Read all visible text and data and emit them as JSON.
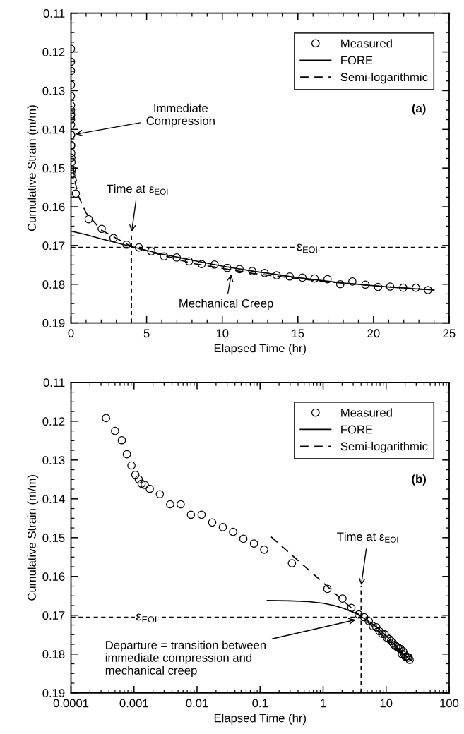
{
  "chart_data": [
    {
      "type": "scatter",
      "xlabel": "Elapsed Time (hr)",
      "ylabel": "Cumulative Strain (m/m)",
      "xlim": [
        0,
        25
      ],
      "xticks": [
        0,
        5,
        10,
        15,
        20,
        25
      ],
      "ylim": [
        0.19,
        0.11
      ],
      "yticks": [
        0.11,
        0.12,
        0.13,
        0.14,
        0.15,
        0.16,
        0.17,
        0.18,
        0.19
      ],
      "legend": "top right",
      "grid": false,
      "series": [
        {
          "name": "Measured",
          "marker": "circle",
          "color": "#000000",
          "x": [
            0.00036,
            0.0005,
            0.00064,
            0.00077,
            0.00091,
            0.00105,
            0.00119,
            0.00132,
            0.00148,
            0.00178,
            0.00257,
            0.00374,
            0.0055,
            0.008,
            0.0118,
            0.0174,
            0.0256,
            0.0373,
            0.0543,
            0.08,
            0.116,
            0.32,
            1.17,
            2.03,
            2.81,
            3.67,
            4.49,
            5.31,
            6.15,
            6.99,
            7.8,
            8.64,
            9.49,
            10.33,
            11.14,
            11.98,
            12.8,
            13.6,
            14.46,
            15.3,
            16.1,
            16.96,
            17.8,
            18.6,
            19.46,
            20.3,
            21.1,
            21.96,
            22.8,
            23.6
          ],
          "values": [
            0.1192,
            0.1225,
            0.1249,
            0.1285,
            0.1314,
            0.1338,
            0.135,
            0.1361,
            0.1364,
            0.1374,
            0.1388,
            0.1414,
            0.1414,
            0.1441,
            0.1441,
            0.1461,
            0.1473,
            0.1485,
            0.1503,
            0.1515,
            0.1531,
            0.1566,
            0.1632,
            0.1657,
            0.1681,
            0.1698,
            0.1705,
            0.1715,
            0.1728,
            0.1731,
            0.1741,
            0.1748,
            0.1749,
            0.1758,
            0.1761,
            0.1766,
            0.1771,
            0.1777,
            0.178,
            0.1783,
            0.1785,
            0.1787,
            0.18,
            0.1793,
            0.1801,
            0.1807,
            0.1806,
            0.1809,
            0.1809,
            0.1815
          ]
        },
        {
          "name": "FORE",
          "type": "line",
          "line_style": "solid",
          "color": "#000000",
          "x": [
            0,
            1,
            2,
            4,
            6,
            8,
            10,
            12,
            15,
            18,
            21,
            24
          ],
          "values": [
            0.1663,
            0.1672,
            0.1683,
            0.1703,
            0.1722,
            0.1738,
            0.1753,
            0.1766,
            0.1783,
            0.1797,
            0.1807,
            0.1815
          ]
        },
        {
          "name": "Semi-logarithmic",
          "type": "line",
          "line_style": "dashed",
          "color": "#000000",
          "x": [
            0.15,
            0.3,
            0.5,
            1,
            2,
            4,
            8,
            12,
            16,
            20,
            24
          ],
          "values": [
            0.1498,
            0.1541,
            0.1573,
            0.1616,
            0.166,
            0.1703,
            0.1746,
            0.1772,
            0.179,
            0.1804,
            0.1815
          ]
        }
      ],
      "ref_lines": [
        {
          "axis": "y",
          "value": 0.1705,
          "label": "ε$_{EOI}$",
          "line_style": "dashed",
          "color": "#000000"
        },
        {
          "axis": "x",
          "value": 4,
          "line_style": "dashed",
          "color": "#000000"
        }
      ],
      "annotations": [
        {
          "text": "Immediate\nCompression",
          "x": 0.25,
          "y": 0.1413
        },
        {
          "text": "Time at ε$_{EOI}$",
          "x": 4,
          "y": 0.1667
        },
        {
          "text": "Mechanical Creep",
          "x": 10.6,
          "y": 0.1772
        },
        "(a)"
      ]
    },
    {
      "type": "scatter",
      "xlabel": "Elapsed Time (hr)",
      "ylabel": "Cumulative Strain (m/m)",
      "log": "x",
      "xlim": [
        0.0001,
        100
      ],
      "xticks": [
        0.0001,
        0.001,
        0.01,
        0.1,
        1,
        10,
        100
      ],
      "ylim": [
        0.19,
        0.11
      ],
      "yticks": [
        0.11,
        0.12,
        0.13,
        0.14,
        0.15,
        0.16,
        0.17,
        0.18,
        0.19
      ],
      "legend": "top right",
      "grid": false,
      "series": [
        {
          "name": "Measured",
          "marker": "circle",
          "color": "#000000",
          "x": [
            0.00036,
            0.0005,
            0.00064,
            0.00077,
            0.00091,
            0.00105,
            0.00119,
            0.00132,
            0.00148,
            0.00178,
            0.00257,
            0.00374,
            0.0055,
            0.008,
            0.0118,
            0.0174,
            0.0256,
            0.0373,
            0.0543,
            0.08,
            0.116,
            0.32,
            1.17,
            2.03,
            2.81,
            3.67,
            4.49,
            5.31,
            6.15,
            6.99,
            7.8,
            8.64,
            9.49,
            10.33,
            11.14,
            11.98,
            12.8,
            13.6,
            14.46,
            15.3,
            16.1,
            16.96,
            17.8,
            18.6,
            19.46,
            20.3,
            21.1,
            21.96,
            22.8,
            23.6
          ],
          "values": [
            0.1192,
            0.1225,
            0.1249,
            0.1285,
            0.1314,
            0.1338,
            0.135,
            0.1361,
            0.1364,
            0.1374,
            0.1388,
            0.1414,
            0.1414,
            0.1441,
            0.1441,
            0.1461,
            0.1473,
            0.1485,
            0.1503,
            0.1515,
            0.1531,
            0.1566,
            0.1632,
            0.1657,
            0.1681,
            0.1698,
            0.1705,
            0.1715,
            0.1728,
            0.1731,
            0.1741,
            0.1748,
            0.1749,
            0.1758,
            0.1761,
            0.1766,
            0.1771,
            0.1777,
            0.178,
            0.1783,
            0.1785,
            0.1787,
            0.18,
            0.1793,
            0.1801,
            0.1807,
            0.1806,
            0.1809,
            0.1809,
            0.1815
          ]
        },
        {
          "name": "FORE",
          "type": "line",
          "line_style": "solid",
          "color": "#000000",
          "x": [
            0.13,
            0.3,
            0.6,
            1,
            1.5,
            2,
            3,
            4,
            6,
            8,
            10,
            12,
            15,
            18,
            21,
            24
          ],
          "values": [
            0.1662,
            0.1663,
            0.1665,
            0.1669,
            0.1675,
            0.1681,
            0.1692,
            0.1703,
            0.1722,
            0.1738,
            0.1753,
            0.1766,
            0.1783,
            0.1797,
            0.1807,
            0.1815
          ]
        },
        {
          "name": "Semi-logarithmic",
          "type": "line",
          "line_style": "dashed",
          "color": "#000000",
          "x": [
            0.15,
            0.3,
            0.5,
            1,
            2,
            4,
            8,
            12,
            16,
            20,
            24
          ],
          "values": [
            0.1498,
            0.1541,
            0.1573,
            0.1616,
            0.166,
            0.1703,
            0.1746,
            0.1772,
            0.179,
            0.1804,
            0.1815
          ]
        }
      ],
      "ref_lines": [
        {
          "axis": "y",
          "value": 0.1705,
          "label": "ε$_{EOI}$",
          "line_style": "dashed",
          "color": "#000000"
        },
        {
          "axis": "x",
          "value": 4,
          "line_style": "dashed",
          "color": "#000000"
        }
      ],
      "annotations": [
        {
          "text": "Time at ε$_{EOI}$",
          "x": 4,
          "y": 0.1625
        },
        {
          "text": "Departure = transition between\nimmediate compression and\nmechanical creep",
          "x": 3.4,
          "y": 0.1711
        },
        "(b)"
      ]
    }
  ]
}
